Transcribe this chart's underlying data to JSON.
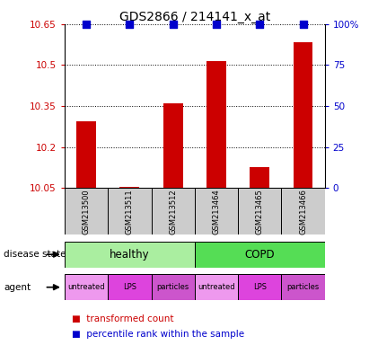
{
  "title": "GDS2866 / 214141_x_at",
  "samples": [
    "GSM213500",
    "GSM213511",
    "GSM213512",
    "GSM213464",
    "GSM213465",
    "GSM213466"
  ],
  "bar_values": [
    10.295,
    10.055,
    10.36,
    10.515,
    10.125,
    10.585
  ],
  "percentile_values": [
    100,
    100,
    100,
    100,
    100,
    100
  ],
  "ylim_left": [
    10.05,
    10.65
  ],
  "ylim_right": [
    0,
    100
  ],
  "yticks_left": [
    10.05,
    10.2,
    10.35,
    10.5,
    10.65
  ],
  "yticks_right": [
    0,
    25,
    50,
    75,
    100
  ],
  "bar_color": "#cc0000",
  "dot_color": "#0000cc",
  "disease_state": [
    "healthy",
    "healthy",
    "healthy",
    "COPD",
    "COPD",
    "COPD"
  ],
  "disease_colors": {
    "healthy": "#aaeea0",
    "COPD": "#55dd55"
  },
  "agent": [
    "untreated",
    "LPS",
    "particles",
    "untreated",
    "LPS",
    "particles"
  ],
  "agent_colors": {
    "untreated": "#ee99ee",
    "LPS": "#dd44dd",
    "particles": "#cc55cc"
  },
  "legend_bar_label": "transformed count",
  "legend_dot_label": "percentile rank within the sample",
  "xlabel_disease": "disease state",
  "xlabel_agent": "agent",
  "bar_width": 0.45,
  "dot_size": 30,
  "sample_box_color": "#cccccc"
}
